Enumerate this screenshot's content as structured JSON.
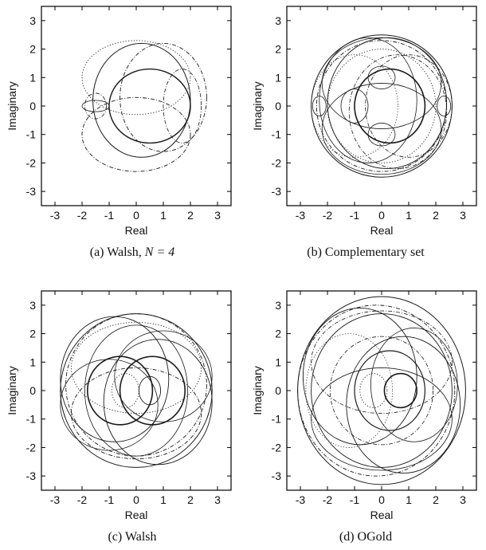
{
  "chart_data": [
    {
      "type": "line",
      "caption": "(a) Walsh, N = 4",
      "caption_prefix": "(a) Walsh, ",
      "caption_math": "N = 4",
      "xlabel": "Real",
      "ylabel": "Imaginary",
      "xlim": [
        -3.5,
        3.5
      ],
      "ylim": [
        -3.5,
        3.5
      ],
      "xticks": [
        -3,
        -2,
        -1,
        0,
        1,
        2,
        3
      ],
      "yticks": [
        -3,
        -2,
        -1,
        0,
        1,
        2,
        3
      ],
      "grid": false,
      "curves": [
        {
          "cx": 0.5,
          "cy": 0.0,
          "rx": 1.5,
          "ry": 1.3,
          "style": "solid",
          "width": 1.4
        },
        {
          "cx": 0.2,
          "cy": 0.2,
          "rx": 1.8,
          "ry": 2.0,
          "style": "solid",
          "width": 1.0
        },
        {
          "cx": 1.0,
          "cy": 0.3,
          "rx": 1.6,
          "ry": 1.9,
          "style": "dashdot",
          "width": 0.9
        },
        {
          "cx": 0.0,
          "cy": 1.0,
          "rx": 2.0,
          "ry": 1.3,
          "style": "dotted",
          "width": 0.9
        },
        {
          "cx": 0.0,
          "cy": -1.0,
          "rx": 2.0,
          "ry": 1.3,
          "style": "dashdot",
          "width": 0.9
        },
        {
          "cx": 1.7,
          "cy": 0.0,
          "rx": 0.7,
          "ry": 1.3,
          "style": "dashdot",
          "width": 0.8
        },
        {
          "cx": -1.5,
          "cy": 0.0,
          "rx": 0.4,
          "ry": 0.45,
          "style": "dashdot",
          "width": 0.8
        },
        {
          "cx": -1.5,
          "cy": 0.0,
          "rx": 0.5,
          "ry": 0.2,
          "style": "solid",
          "width": 0.8
        }
      ]
    },
    {
      "type": "line",
      "caption": "(b) Complementary set",
      "xlabel": "Real",
      "ylabel": "Imaginary",
      "xlim": [
        -3.5,
        3.5
      ],
      "ylim": [
        -3.5,
        3.5
      ],
      "xticks": [
        -3,
        -2,
        -1,
        0,
        1,
        2,
        3
      ],
      "yticks": [
        -3,
        -2,
        -1,
        0,
        1,
        2,
        3
      ],
      "grid": false,
      "curves": [
        {
          "cx": 0.0,
          "cy": 0.0,
          "rx": 2.6,
          "ry": 2.5,
          "style": "solid",
          "width": 1.0
        },
        {
          "cx": 0.0,
          "cy": 0.0,
          "rx": 2.4,
          "ry": 2.3,
          "style": "dashdot",
          "width": 0.9
        },
        {
          "cx": 0.2,
          "cy": 0.1,
          "rx": 2.2,
          "ry": 2.3,
          "style": "solid",
          "width": 0.9
        },
        {
          "cx": 0.3,
          "cy": 0.0,
          "rx": 1.3,
          "ry": 1.3,
          "style": "solid",
          "width": 1.6
        },
        {
          "cx": 0.0,
          "cy": 0.0,
          "rx": 2.0,
          "ry": 2.0,
          "style": "dotted",
          "width": 0.9
        },
        {
          "cx": -0.5,
          "cy": 0.2,
          "rx": 1.8,
          "ry": 2.2,
          "style": "solid",
          "width": 0.8
        },
        {
          "cx": 0.6,
          "cy": -0.2,
          "rx": 1.8,
          "ry": 2.0,
          "style": "dashdot",
          "width": 0.8
        },
        {
          "cx": 0.0,
          "cy": 0.8,
          "rx": 2.2,
          "ry": 1.6,
          "style": "solid",
          "width": 0.8
        },
        {
          "cx": 0.0,
          "cy": -0.8,
          "rx": 2.2,
          "ry": 1.6,
          "style": "solid",
          "width": 0.8
        },
        {
          "cx": -1.0,
          "cy": 0.0,
          "rx": 1.6,
          "ry": 1.8,
          "style": "dotted",
          "width": 0.8
        },
        {
          "cx": 1.0,
          "cy": 0.0,
          "rx": 1.6,
          "ry": 1.8,
          "style": "dashdot",
          "width": 0.8
        },
        {
          "cx": 0.0,
          "cy": 1.0,
          "rx": 0.5,
          "ry": 0.4,
          "style": "solid",
          "width": 0.8
        },
        {
          "cx": 0.0,
          "cy": -1.0,
          "rx": 0.5,
          "ry": 0.4,
          "style": "solid",
          "width": 0.8
        },
        {
          "cx": -1.0,
          "cy": 0.0,
          "rx": 0.5,
          "ry": 0.6,
          "style": "solid",
          "width": 0.8
        },
        {
          "cx": -2.3,
          "cy": 0.0,
          "rx": 0.25,
          "ry": 0.35,
          "style": "solid",
          "width": 0.8
        },
        {
          "cx": 2.3,
          "cy": 0.0,
          "rx": 0.25,
          "ry": 0.35,
          "style": "solid",
          "width": 0.8
        }
      ]
    },
    {
      "type": "line",
      "caption": "(c) Walsh",
      "xlabel": "Real",
      "ylabel": "Imaginary",
      "xlim": [
        -3.5,
        3.5
      ],
      "ylim": [
        -3.5,
        3.5
      ],
      "xticks": [
        -3,
        -2,
        -1,
        0,
        1,
        2,
        3
      ],
      "yticks": [
        -3,
        -2,
        -1,
        0,
        1,
        2,
        3
      ],
      "grid": false,
      "curves": [
        {
          "cx": 0.0,
          "cy": 0.0,
          "rx": 2.8,
          "ry": 2.7,
          "style": "solid",
          "width": 1.0
        },
        {
          "cx": 0.0,
          "cy": 0.2,
          "rx": 2.6,
          "ry": 2.5,
          "style": "dashdot",
          "width": 0.9
        },
        {
          "cx": -0.6,
          "cy": 0.0,
          "rx": 1.2,
          "ry": 1.2,
          "style": "solid",
          "width": 1.6
        },
        {
          "cx": 0.6,
          "cy": 0.0,
          "rx": 1.2,
          "ry": 1.2,
          "style": "solid",
          "width": 1.6
        },
        {
          "cx": -0.8,
          "cy": 0.4,
          "rx": 2.0,
          "ry": 2.2,
          "style": "solid",
          "width": 0.9
        },
        {
          "cx": 0.8,
          "cy": -0.4,
          "rx": 2.0,
          "ry": 2.2,
          "style": "solid",
          "width": 0.9
        },
        {
          "cx": 0.0,
          "cy": 0.8,
          "rx": 2.4,
          "ry": 1.6,
          "style": "dotted",
          "width": 0.9
        },
        {
          "cx": 0.0,
          "cy": -0.8,
          "rx": 2.4,
          "ry": 1.6,
          "style": "dashdot",
          "width": 0.9
        },
        {
          "cx": 0.5,
          "cy": 0.0,
          "rx": 0.4,
          "ry": 0.5,
          "style": "solid",
          "width": 0.9
        },
        {
          "cx": -0.4,
          "cy": 0.0,
          "rx": 0.5,
          "ry": 0.6,
          "style": "dotted",
          "width": 0.9
        },
        {
          "cx": 1.0,
          "cy": 0.5,
          "rx": 1.8,
          "ry": 1.6,
          "style": "solid",
          "width": 0.8
        },
        {
          "cx": -1.0,
          "cy": -0.5,
          "rx": 1.8,
          "ry": 1.6,
          "style": "solid",
          "width": 0.8
        },
        {
          "cx": 0.0,
          "cy": 0.0,
          "rx": 1.9,
          "ry": 2.3,
          "style": "solid",
          "width": 0.8
        }
      ]
    },
    {
      "type": "line",
      "caption": "(d) OGold",
      "xlabel": "Real",
      "ylabel": "Imaginary",
      "xlim": [
        -3.5,
        3.5
      ],
      "ylim": [
        -3.5,
        3.5
      ],
      "xticks": [
        -3,
        -2,
        -1,
        0,
        1,
        2,
        3
      ],
      "yticks": [
        -3,
        -2,
        -1,
        0,
        1,
        2,
        3
      ],
      "grid": false,
      "curves": [
        {
          "cx": 0.0,
          "cy": 0.0,
          "rx": 3.1,
          "ry": 3.3,
          "style": "solid",
          "width": 1.0
        },
        {
          "cx": -0.2,
          "cy": 0.0,
          "rx": 2.9,
          "ry": 3.0,
          "style": "dashdot",
          "width": 0.9
        },
        {
          "cx": 0.0,
          "cy": 0.0,
          "rx": 2.6,
          "ry": 2.7,
          "style": "solid",
          "width": 0.9
        },
        {
          "cx": 0.7,
          "cy": 0.0,
          "rx": 0.6,
          "ry": 0.6,
          "style": "solid",
          "width": 1.6
        },
        {
          "cx": -0.3,
          "cy": 0.0,
          "rx": 0.5,
          "ry": 0.6,
          "style": "dotted",
          "width": 0.9
        },
        {
          "cx": -0.8,
          "cy": 0.5,
          "rx": 2.1,
          "ry": 2.4,
          "style": "solid",
          "width": 0.9
        },
        {
          "cx": 0.8,
          "cy": -0.5,
          "rx": 2.1,
          "ry": 2.4,
          "style": "solid",
          "width": 0.9
        },
        {
          "cx": 0.0,
          "cy": 1.0,
          "rx": 2.6,
          "ry": 1.8,
          "style": "dashdot",
          "width": 0.8
        },
        {
          "cx": 0.0,
          "cy": -1.0,
          "rx": 2.6,
          "ry": 1.8,
          "style": "solid",
          "width": 0.8
        },
        {
          "cx": -1.2,
          "cy": 0.0,
          "rx": 1.6,
          "ry": 2.0,
          "style": "dotted",
          "width": 0.8
        },
        {
          "cx": 1.2,
          "cy": 0.2,
          "rx": 1.6,
          "ry": 2.0,
          "style": "solid",
          "width": 0.8
        },
        {
          "cx": 0.3,
          "cy": 0.0,
          "rx": 1.3,
          "ry": 1.4,
          "style": "solid",
          "width": 1.2
        },
        {
          "cx": 0.0,
          "cy": 0.0,
          "rx": 1.9,
          "ry": 1.9,
          "style": "dashdot",
          "width": 0.8
        }
      ]
    }
  ]
}
